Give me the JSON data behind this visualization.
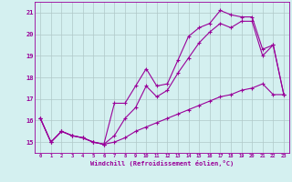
{
  "xlabel": "Windchill (Refroidissement éolien,°C)",
  "hours": [
    0,
    1,
    2,
    3,
    4,
    5,
    6,
    7,
    8,
    9,
    10,
    11,
    12,
    13,
    14,
    15,
    16,
    17,
    18,
    19,
    20,
    21,
    22,
    23
  ],
  "line_upper": [
    16.1,
    15.0,
    15.5,
    15.3,
    15.2,
    15.0,
    14.9,
    16.8,
    16.8,
    17.6,
    18.4,
    17.6,
    17.7,
    18.8,
    19.9,
    20.3,
    20.5,
    21.1,
    20.9,
    20.8,
    20.8,
    19.3,
    19.5,
    17.2
  ],
  "line_mid": [
    16.1,
    15.0,
    15.5,
    15.3,
    15.2,
    15.0,
    14.9,
    15.3,
    16.1,
    16.6,
    17.6,
    17.1,
    17.4,
    18.2,
    18.9,
    19.6,
    20.1,
    20.5,
    20.3,
    20.6,
    20.6,
    19.0,
    19.5,
    17.2
  ],
  "line_lower": [
    16.1,
    15.0,
    15.5,
    15.3,
    15.2,
    15.0,
    14.9,
    15.0,
    15.2,
    15.5,
    15.7,
    15.9,
    16.1,
    16.3,
    16.5,
    16.7,
    16.9,
    17.1,
    17.2,
    17.4,
    17.5,
    17.7,
    17.2,
    17.2
  ],
  "line_color": "#990099",
  "bg_color": "#d4f0f0",
  "grid_color": "#b0c8c8",
  "ylim": [
    14.5,
    21.5
  ],
  "yticks": [
    15,
    16,
    17,
    18,
    19,
    20,
    21
  ],
  "marker": "+",
  "markersize": 3,
  "linewidth": 0.8
}
